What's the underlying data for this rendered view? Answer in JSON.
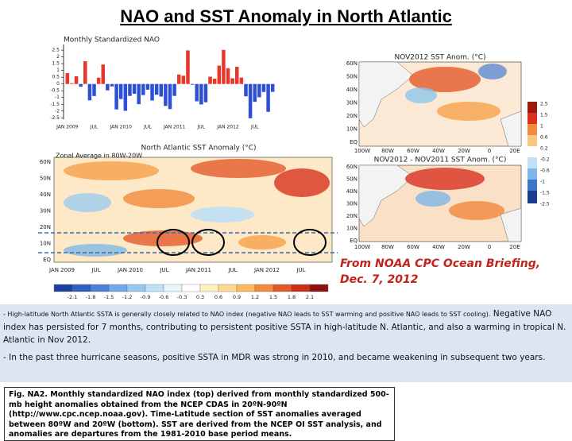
{
  "title": "NAO and SST Anomaly in North Atlantic",
  "nao_chart": {
    "type": "bar",
    "title": "Monthly Standardized NAO",
    "categories": [
      "JAN 2009",
      "JUL",
      "JAN 2010",
      "JUL",
      "JAN 2011",
      "JUL",
      "JAN 2012",
      "JUL"
    ],
    "values": [
      0.8,
      0.06,
      0.57,
      -0.2,
      1.68,
      -1.21,
      -0.89,
      0.47,
      1.44,
      -0.47,
      -0.18,
      -1.88,
      -1.11,
      -1.98,
      -0.88,
      -0.72,
      -1.49,
      -0.82,
      -0.42,
      -1.22,
      -0.79,
      -0.93,
      -1.62,
      -1.85,
      -0.88,
      0.7,
      0.61,
      2.48,
      -0.06,
      -1.28,
      -1.51,
      -1.35,
      0.54,
      0.39,
      1.36,
      2.52,
      1.17,
      0.42,
      1.27,
      0.47,
      -0.91,
      -2.53,
      -1.32,
      -0.98,
      -0.59,
      -2.06,
      -0.58
    ],
    "colors": {
      "positive": "#e8362a",
      "negative": "#2c4fd6"
    },
    "ylim": [
      -2.6,
      2.8
    ],
    "yticks": [
      2.5,
      2,
      1.5,
      1,
      0.5,
      0,
      -0.5,
      -1,
      -1.5,
      -2,
      -2.5
    ]
  },
  "map_top": {
    "title": "NOV2012 SST Anom. (°C)"
  },
  "map_bottom": {
    "title": "NOV2012 - NOV2011 SST Anom. (°C)"
  },
  "map_lat_labels": [
    "60N",
    "50N",
    "40N",
    "30N",
    "20N",
    "10N",
    "EQ"
  ],
  "map_lon_labels": [
    "100W",
    "80W",
    "60W",
    "40W",
    "20W",
    "0",
    "20E"
  ],
  "map_colorbar_labels": [
    "2.5",
    "1.5",
    "1",
    "0.6",
    "0.2",
    "-0.2",
    "-0.6",
    "-1",
    "-1.5",
    "-2.5"
  ],
  "hovmoller": {
    "title": "North Atlantic SST Anomaly (°C)",
    "subtitle": "Zonal Average in 80W-20W",
    "lat_labels": [
      "60N",
      "50N",
      "40N",
      "30N",
      "20N",
      "10N",
      "EQ"
    ],
    "time_labels": [
      "JAN 2009",
      "JUL",
      "JAN 2010",
      "JUL",
      "JAN 2011",
      "JUL",
      "JAN 2012",
      "JUL"
    ],
    "colorbar_labels": [
      "-2.1",
      "-1.8",
      "-1.5",
      "-1.2",
      "-0.9",
      "-0.6",
      "-0.3",
      "0.3",
      "0.6",
      "0.9",
      "1.2",
      "1.5",
      "1.8",
      "2.1"
    ]
  },
  "source": [
    "From NOAA CPC Ocean Briefing,",
    "Dec. 7, 2012"
  ],
  "bullets": [
    {
      "small": "- High-latitude North Atlantic SSTA is generally closely related to NAO index (negative NAO leads to SST warming and positive NAO leads to SST cooling).",
      "text": " Negative NAO index has persisted for 7 months, contributing to persistent positive SSTA in high-latitude N. Atlantic, and also a warming in tropical N. Atlantic in Nov 2012."
    },
    {
      "small": "-",
      "text": " In the past three hurricane seasons, positive SSTA in MDR was strong in 2010, and became weakening in subsequent two years."
    }
  ],
  "caption": "Fig. NA2. Monthly standardized NAO index (top) derived from monthly standardized 500-mb height anomalies obtained from the NCEP CDAS in 20ºN-90ºN (http://www.cpc.ncep.noaa.gov). Time-Latitude section of SST anomalies averaged between 80ºW and 20ºW (bottom). SST are derived from the NCEP OI SST analysis, and anomalies are departures from the 1981-2010 base period means."
}
